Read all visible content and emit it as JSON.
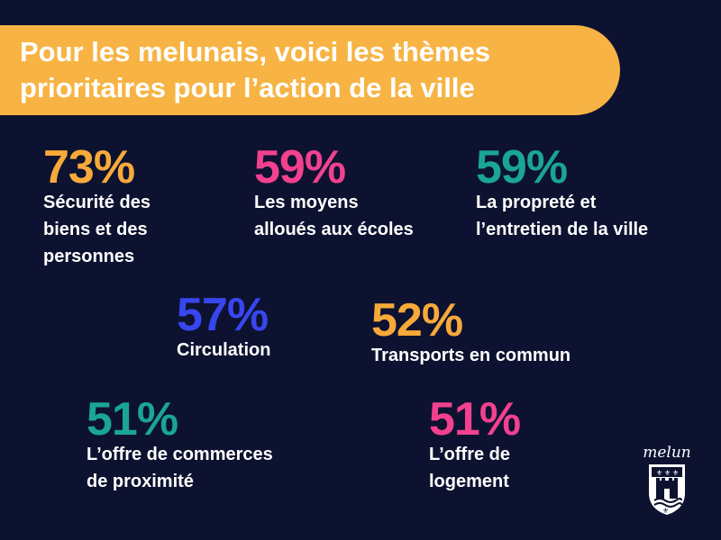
{
  "title": "Pour les melunais, voici les thèmes\nprioritaires pour l’action de la ville",
  "colors": {
    "background": "#0d1230",
    "banner": "#f7b444",
    "orange": "#f7a93a",
    "pink": "#f2418f",
    "teal": "#1aa596",
    "blue": "#3846f0"
  },
  "stats": [
    {
      "percent": "73%",
      "label": "Sécurité des\nbiens et des\npersonnes",
      "color": "#f7a93a"
    },
    {
      "percent": "59%",
      "label": "Les moyens\nalloués aux écoles",
      "color": "#f2418f"
    },
    {
      "percent": "59%",
      "label": "La propreté et\nl’entretien de la ville",
      "color": "#1aa596"
    },
    {
      "percent": "57%",
      "label": "Circulation",
      "color": "#3846f0"
    },
    {
      "percent": "52%",
      "label": "Transports en commun",
      "color": "#f7a93a"
    },
    {
      "percent": "51%",
      "label": "L’offre de commerces\nde proximité",
      "color": "#1aa596"
    },
    {
      "percent": "51%",
      "label": "L’offre de\nlogement",
      "color": "#f2418f"
    }
  ],
  "logo": {
    "text": "melun",
    "icon": "melun-coat-of-arms-icon"
  }
}
